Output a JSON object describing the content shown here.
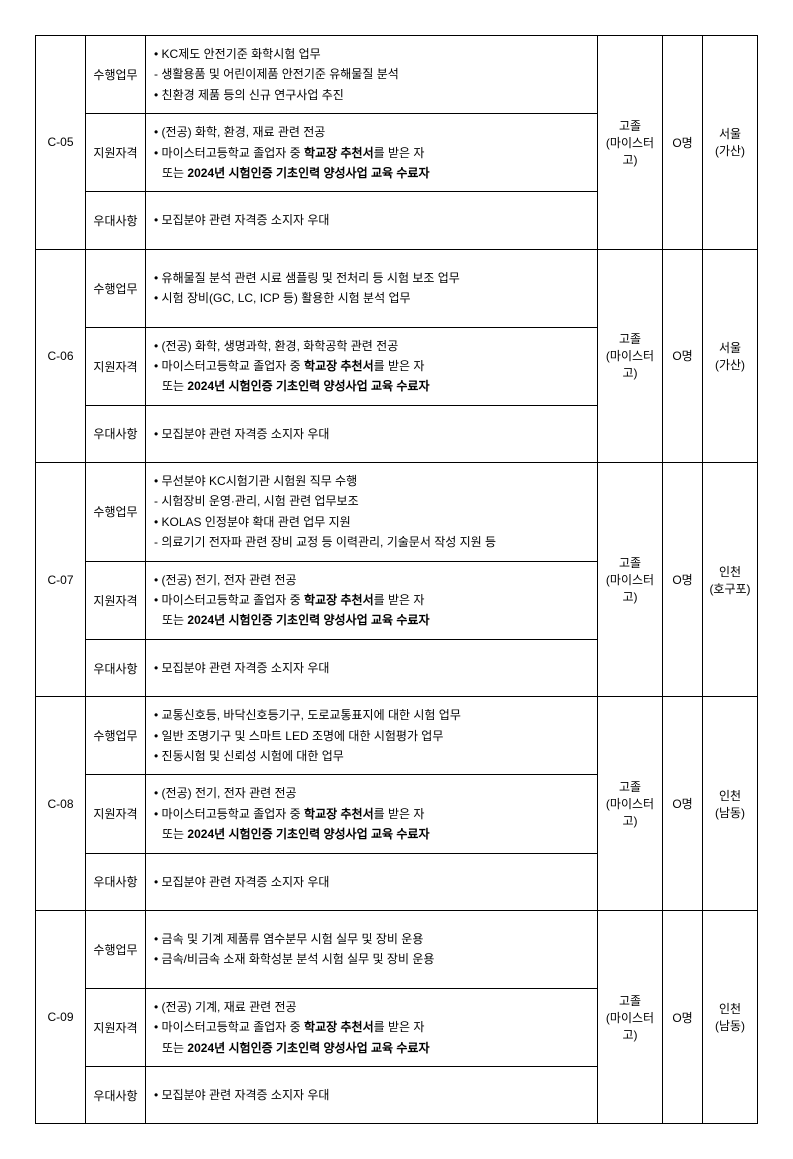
{
  "rows": [
    {
      "code": "C-05",
      "edu": "고졸\n(마이스터고)",
      "count": "O명",
      "loc": "서울\n(가산)",
      "sections": [
        {
          "label": "수행업무",
          "lines": [
            "• KC제도 안전기준 화학시험 업무",
            " - 생활용품 및 어린이제품 안전기준 유해물질 분석",
            "• 친환경 제품 등의 신규 연구사업 추진"
          ]
        },
        {
          "label": "지원자격",
          "lines": [
            "• (전공) 화학, 환경, 재료 관련 전공",
            {
              "prefix": "• 마이스터고등학교 졸업자 중 ",
              "bold": "학교장 추천서",
              "suffix": "를 받은 자"
            },
            {
              "indent": true,
              "prefix": "또는 ",
              "bold": "2024년 시험인증 기초인력 양성사업 교육 수료자",
              "suffix": ""
            }
          ]
        },
        {
          "label": "우대사항",
          "lines": [
            "• 모집분야 관련 자격증 소지자 우대"
          ],
          "tall": true
        }
      ]
    },
    {
      "code": "C-06",
      "edu": "고졸\n(마이스터고)",
      "count": "O명",
      "loc": "서울\n(가산)",
      "sections": [
        {
          "label": "수행업무",
          "lines": [
            "• 유해물질 분석 관련 시료 샘플링 및 전처리 등 시험 보조 업무",
            "• 시험 장비(GC, LC, ICP 등) 활용한 시험 분석 업무"
          ],
          "tall": true
        },
        {
          "label": "지원자격",
          "lines": [
            "• (전공) 화학, 생명과학, 환경, 화학공학 관련 전공",
            {
              "prefix": "• 마이스터고등학교 졸업자 중 ",
              "bold": "학교장 추천서",
              "suffix": "를 받은 자"
            },
            {
              "indent": true,
              "prefix": "또는 ",
              "bold": "2024년 시험인증 기초인력 양성사업 교육 수료자",
              "suffix": ""
            }
          ]
        },
        {
          "label": "우대사항",
          "lines": [
            "• 모집분야 관련 자격증 소지자 우대"
          ],
          "tall": true
        }
      ]
    },
    {
      "code": "C-07",
      "edu": "고졸\n(마이스터고)",
      "count": "O명",
      "loc": "인천\n(호구포)",
      "sections": [
        {
          "label": "수행업무",
          "lines": [
            "• 무선분야 KC시험기관 시험원 직무 수행",
            " - 시험장비 운영·관리, 시험 관련 업무보조",
            "• KOLAS 인정분야 확대 관련 업무 지원",
            " - 의료기기 전자파 관련 장비 교정 등 이력관리, 기술문서 작성 지원 등"
          ]
        },
        {
          "label": "지원자격",
          "lines": [
            "• (전공) 전기, 전자 관련 전공",
            {
              "prefix": "• 마이스터고등학교 졸업자 중 ",
              "bold": "학교장 추천서",
              "suffix": "를 받은 자"
            },
            {
              "indent": true,
              "prefix": "또는 ",
              "bold": "2024년 시험인증 기초인력 양성사업 교육 수료자",
              "suffix": ""
            }
          ]
        },
        {
          "label": "우대사항",
          "lines": [
            "• 모집분야 관련 자격증 소지자 우대"
          ],
          "tall": true
        }
      ]
    },
    {
      "code": "C-08",
      "edu": "고졸\n(마이스터고)",
      "count": "O명",
      "loc": "인천\n(남동)",
      "sections": [
        {
          "label": "수행업무",
          "lines": [
            "• 교통신호등, 바닥신호등기구, 도로교통표지에 대한 시험 업무",
            "• 일반 조명기구 및 스마트 LED 조명에 대한 시험평가 업무",
            "• 진동시험 및 신뢰성 시험에 대한 업무"
          ]
        },
        {
          "label": "지원자격",
          "lines": [
            "• (전공) 전기, 전자 관련 전공",
            {
              "prefix": "• 마이스터고등학교 졸업자 중 ",
              "bold": "학교장 추천서",
              "suffix": "를 받은 자"
            },
            {
              "indent": true,
              "prefix": "또는 ",
              "bold": "2024년 시험인증 기초인력 양성사업 교육 수료자",
              "suffix": ""
            }
          ]
        },
        {
          "label": "우대사항",
          "lines": [
            "• 모집분야 관련 자격증 소지자 우대"
          ],
          "tall": true
        }
      ]
    },
    {
      "code": "C-09",
      "edu": "고졸\n(마이스터고)",
      "count": "O명",
      "loc": "인천\n(남동)",
      "sections": [
        {
          "label": "수행업무",
          "lines": [
            "• 금속 및 기계 제품류 염수분무 시험 실무 및 장비 운용",
            "• 금속/비금속 소재 화학성분 분석 시험 실무 및 장비 운용"
          ],
          "tall": true
        },
        {
          "label": "지원자격",
          "lines": [
            "• (전공) 기계, 재료 관련 전공",
            {
              "prefix": "• 마이스터고등학교 졸업자 중 ",
              "bold": "학교장 추천서",
              "suffix": "를 받은 자"
            },
            {
              "indent": true,
              "prefix": "또는 ",
              "bold": "2024년 시험인증 기초인력 양성사업 교육 수료자",
              "suffix": ""
            }
          ]
        },
        {
          "label": "우대사항",
          "lines": [
            "• 모집분야 관련 자격증 소지자 우대"
          ],
          "tall": true
        }
      ]
    }
  ]
}
